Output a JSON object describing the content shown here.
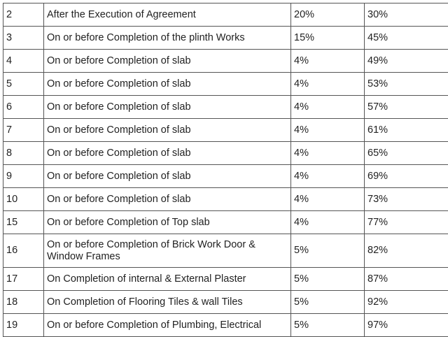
{
  "table": {
    "rows": [
      [
        "2",
        "After the Execution of Agreement",
        "20%",
        "30%"
      ],
      [
        "3",
        "On or before Completion of the plinth Works",
        "15%",
        "45%"
      ],
      [
        "4",
        "On or before Completion of slab",
        "4%",
        "49%"
      ],
      [
        "5",
        "On or before Completion of slab",
        "4%",
        "53%"
      ],
      [
        "6",
        "On or before Completion of slab",
        "4%",
        "57%"
      ],
      [
        "7",
        "On or before Completion of slab",
        "4%",
        "61%"
      ],
      [
        "8",
        "On or before Completion of slab",
        "4%",
        "65%"
      ],
      [
        "9",
        "On or before Completion of slab",
        "4%",
        "69%"
      ],
      [
        "10",
        "On or before Completion of slab",
        "4%",
        "73%"
      ],
      [
        "15",
        "On or before Completion of Top slab",
        "4%",
        "77%"
      ],
      [
        "16",
        "On or before Completion of Brick Work Door & Window Frames",
        "5%",
        "82%"
      ],
      [
        "17",
        "On Completion of internal & External Plaster",
        "5%",
        "87%"
      ],
      [
        "18",
        "On Completion of Flooring Tiles & wall Tiles",
        "5%",
        "92%"
      ],
      [
        "19",
        "On or before Completion of Plumbing, Electrical",
        "5%",
        "97%"
      ]
    ]
  }
}
